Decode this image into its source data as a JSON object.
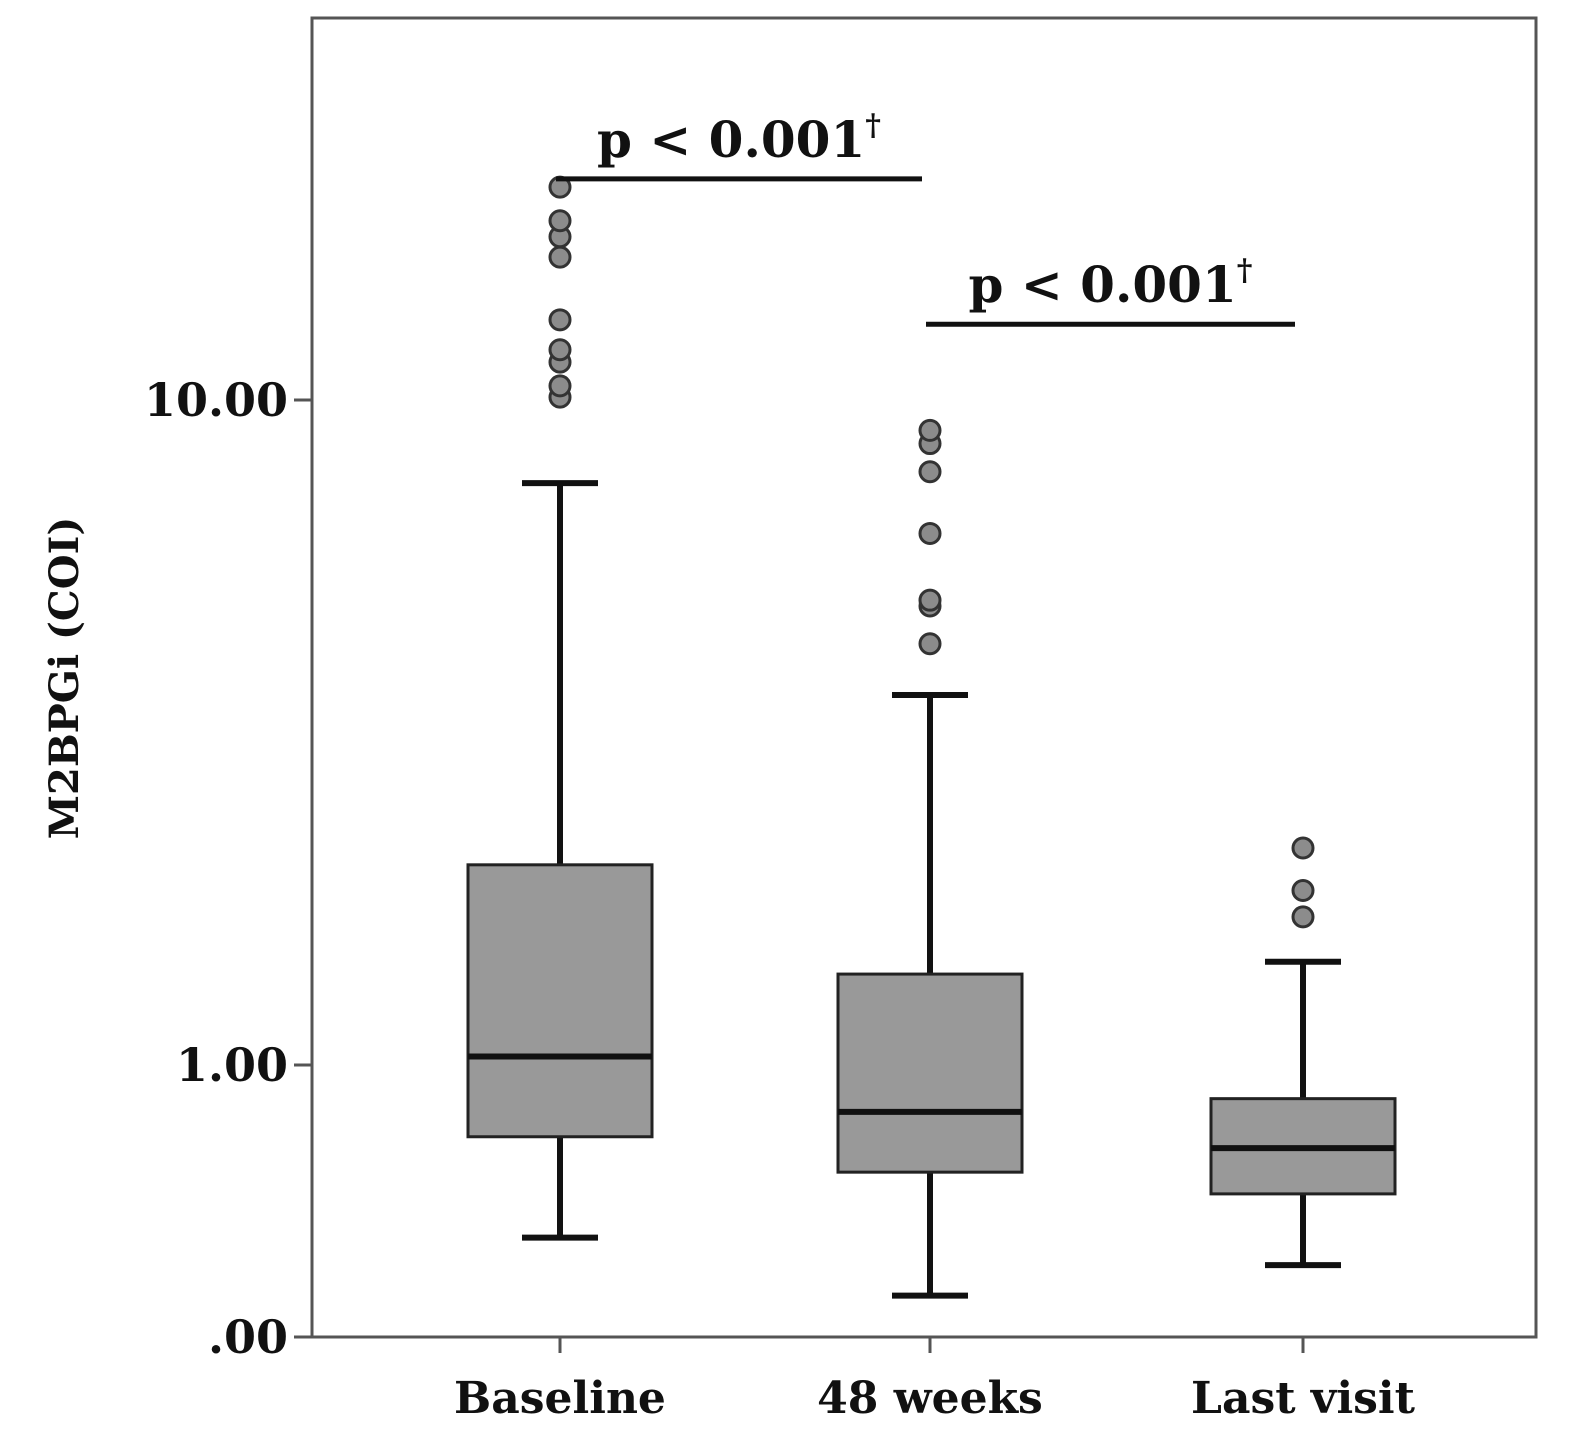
{
  "chart_data": {
    "type": "box",
    "title": "",
    "xlabel": "",
    "ylabel": "M2BPGi (COI)",
    "y_scale": "log",
    "y_ticks": [
      {
        "value": 0,
        "label": ".00"
      },
      {
        "value": 1,
        "label": "1.00"
      },
      {
        "value": 10,
        "label": "10.00"
      }
    ],
    "categories": [
      "Baseline",
      "48 weeks",
      "Last visit"
    ],
    "boxes": [
      {
        "category": "Baseline",
        "whisker_low": 0.55,
        "q1": 0.78,
        "median": 1.03,
        "q3": 2.0,
        "whisker_high": 7.5,
        "outliers": [
          10.1,
          10.5,
          11.4,
          11.9,
          13.2,
          16.4,
          17.6,
          18.6,
          20.9
        ]
      },
      {
        "category": "48 weeks",
        "whisker_low": 0.45,
        "q1": 0.69,
        "median": 0.85,
        "q3": 1.37,
        "whisker_high": 3.6,
        "outliers": [
          4.3,
          4.9,
          5.0,
          6.3,
          7.8,
          8.6,
          9.0
        ]
      },
      {
        "category": "Last visit",
        "whisker_low": 0.5,
        "q1": 0.64,
        "median": 0.75,
        "q3": 0.89,
        "whisker_high": 1.43,
        "outliers": [
          1.67,
          1.83,
          2.12
        ]
      }
    ],
    "annotations": [
      {
        "from": "Baseline",
        "to": "48 weeks",
        "text": "p < 0.001",
        "superscript": "†",
        "value": 21.5
      },
      {
        "from": "48 weeks",
        "to": "Last visit",
        "text": "p < 0.001",
        "superscript": "†",
        "value": 13.0
      }
    ],
    "colors": {
      "box_fill": "#999999",
      "outlier_fill": "#8c8c8c",
      "line": "#111111",
      "frame": "#555555"
    }
  }
}
